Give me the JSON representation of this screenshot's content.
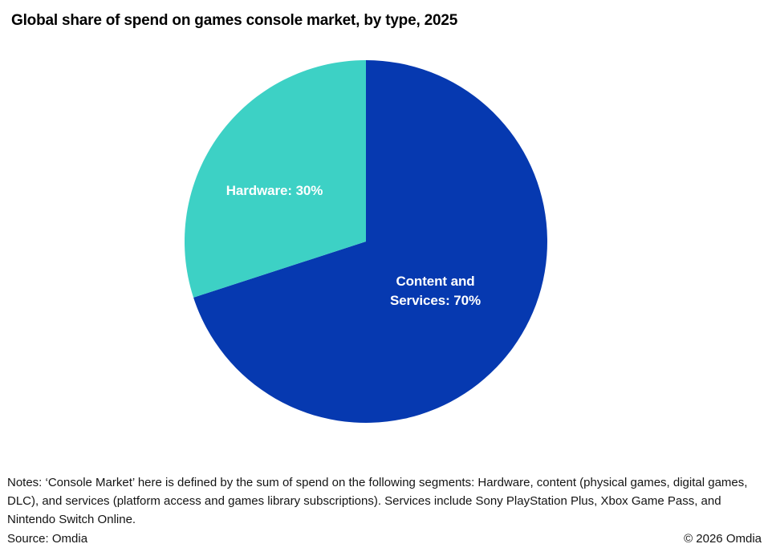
{
  "title": "Global share of spend on games console market, by type, 2025",
  "chart_data": {
    "type": "pie",
    "title": "Global share of spend on games console market, by type, 2025",
    "start_angle_deg": 0,
    "direction": "clockwise",
    "legend_position": "none",
    "label_style": "inside-white-bold",
    "slices": [
      {
        "label": "Content and Services",
        "value": 70,
        "color": "#0639B0",
        "display": "Content and Services: 70%"
      },
      {
        "label": "Hardware",
        "value": 30,
        "color": "#3DD1C5",
        "display": "Hardware: 30%"
      }
    ]
  },
  "notes": "Notes: ‘Console Market’ here is defined by the sum of spend on the following segments: Hardware, content (physical games, digital games, DLC), and services (platform access and games library subscriptions). Services include Sony PlayStation Plus, Xbox Game Pass, and Nintendo Switch Online.",
  "footer": {
    "source": "Source: Omdia",
    "copyright": "© 2026 Omdia"
  }
}
